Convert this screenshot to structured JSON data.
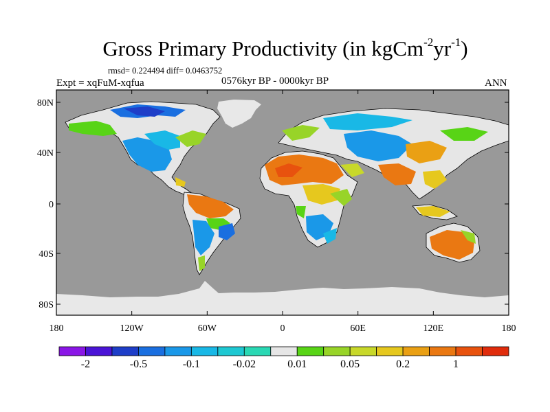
{
  "title": {
    "main": "Gross Primary Productivity (in kgCm",
    "sup1": "-2",
    "mid": "yr",
    "sup2": "-1",
    "end": ")"
  },
  "stats": "rmsd= 0.224494 diff= 0.0463752",
  "expt": "Expt = xqFuM-xqfua",
  "period": "0576kyr BP - 0000kyr BP",
  "season": "ANN",
  "map": {
    "ocean_color": "#999999",
    "ice_color": "#e8e8e8",
    "lat_ticks": [
      "80N",
      "40N",
      "0",
      "40S",
      "80S"
    ],
    "lon_ticks": [
      "180",
      "120W",
      "60W",
      "0",
      "60E",
      "120E",
      "180"
    ]
  },
  "colorbar": {
    "colors": [
      "#8a16e6",
      "#4a14d6",
      "#1e3ec8",
      "#1a6fe0",
      "#1a98e8",
      "#19b8e6",
      "#1ec8d2",
      "#2ad8b4",
      "#e6e6e6",
      "#58d416",
      "#98d428",
      "#c8d82a",
      "#e6c81e",
      "#eaa014",
      "#ea7812",
      "#e8520e",
      "#e02c0c"
    ],
    "labels": [
      "-2",
      "-0.5",
      "-0.1",
      "-0.02",
      "0.01",
      "0.05",
      "0.2",
      "1"
    ]
  },
  "chart_data": {
    "type": "heatmap",
    "title": "Gross Primary Productivity (in kgCm-2yr-1)",
    "variable": "Gross Primary Productivity difference",
    "units": "kgCm-2yr-1",
    "experiment": "xqFuM-xqfua",
    "period": "0576kyr BP - 0000kyr BP",
    "season": "ANN",
    "rmsd": 0.224494,
    "diff": 0.0463752,
    "x_axis": {
      "ticks": [
        "180",
        "120W",
        "60W",
        "0",
        "60E",
        "120E",
        "180"
      ],
      "range": [
        -180,
        180
      ]
    },
    "y_axis": {
      "ticks": [
        "80N",
        "40N",
        "0",
        "40S",
        "80S"
      ],
      "range": [
        -90,
        90
      ]
    },
    "contour_levels": [
      -2,
      -1,
      -0.5,
      -0.2,
      -0.1,
      -0.05,
      -0.02,
      -0.01,
      0.01,
      0.02,
      0.05,
      0.1,
      0.2,
      0.5,
      1,
      2
    ],
    "colorbar_labels": [
      "-2",
      "-0.5",
      "-0.1",
      "-0.02",
      "0.01",
      "0.05",
      "0.2",
      "1"
    ]
  }
}
